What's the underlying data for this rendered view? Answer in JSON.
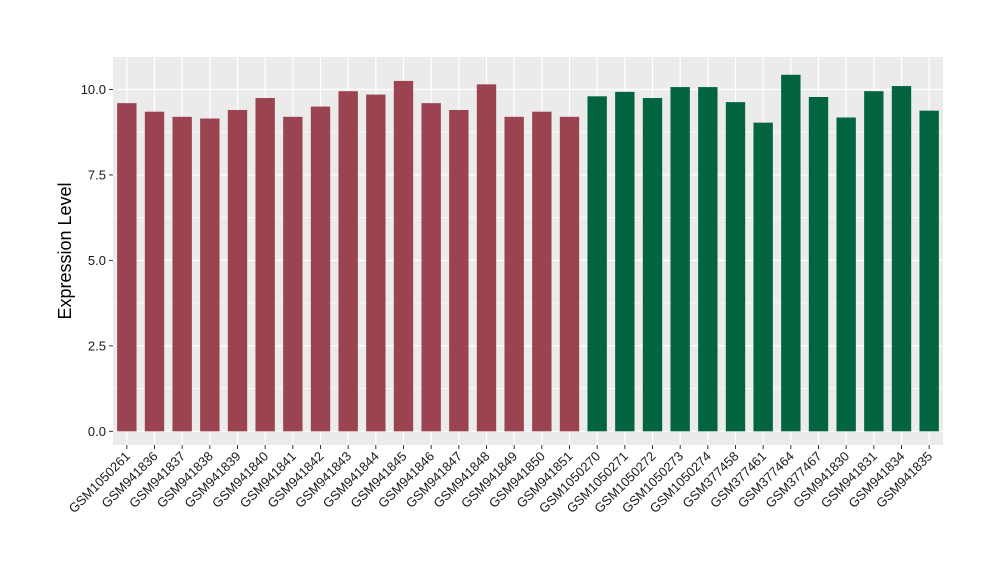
{
  "chart_data": {
    "type": "bar",
    "title": "",
    "xlabel": "",
    "ylabel": "Expression Level",
    "ylim": [
      -0.4,
      10.95
    ],
    "yticks": [
      0.0,
      2.5,
      5.0,
      7.5,
      10.0
    ],
    "ytick_labels": [
      "0.0",
      "2.5",
      "5.0",
      "7.5",
      "10.0"
    ],
    "grid": true,
    "legend": "none",
    "categories": [
      "GSM1050261",
      "GSM941836",
      "GSM941837",
      "GSM941838",
      "GSM941839",
      "GSM941840",
      "GSM941841",
      "GSM941842",
      "GSM941843",
      "GSM941844",
      "GSM941845",
      "GSM941846",
      "GSM941847",
      "GSM941848",
      "GSM941849",
      "GSM941850",
      "GSM941851",
      "GSM1050270",
      "GSM1050271",
      "GSM1050272",
      "GSM1050273",
      "GSM1050274",
      "GSM377458",
      "GSM377461",
      "GSM377464",
      "GSM377467",
      "GSM941830",
      "GSM941831",
      "GSM941834",
      "GSM941835"
    ],
    "values": [
      9.6,
      9.35,
      9.2,
      9.15,
      9.4,
      9.75,
      9.2,
      9.5,
      9.95,
      9.85,
      10.25,
      9.6,
      9.4,
      10.15,
      9.2,
      9.35,
      9.2,
      9.8,
      9.93,
      9.75,
      10.07,
      10.07,
      9.63,
      9.03,
      10.43,
      9.78,
      9.18,
      9.95,
      10.1,
      9.38
    ],
    "groups": [
      0,
      0,
      0,
      0,
      0,
      0,
      0,
      0,
      0,
      0,
      0,
      0,
      0,
      0,
      0,
      0,
      0,
      1,
      1,
      1,
      1,
      1,
      1,
      1,
      1,
      1,
      1,
      1,
      1,
      1
    ],
    "group_colors": [
      "#9b4350",
      "#036440"
    ],
    "panel_color": "#ebebeb",
    "grid_color": "#ffffff"
  }
}
